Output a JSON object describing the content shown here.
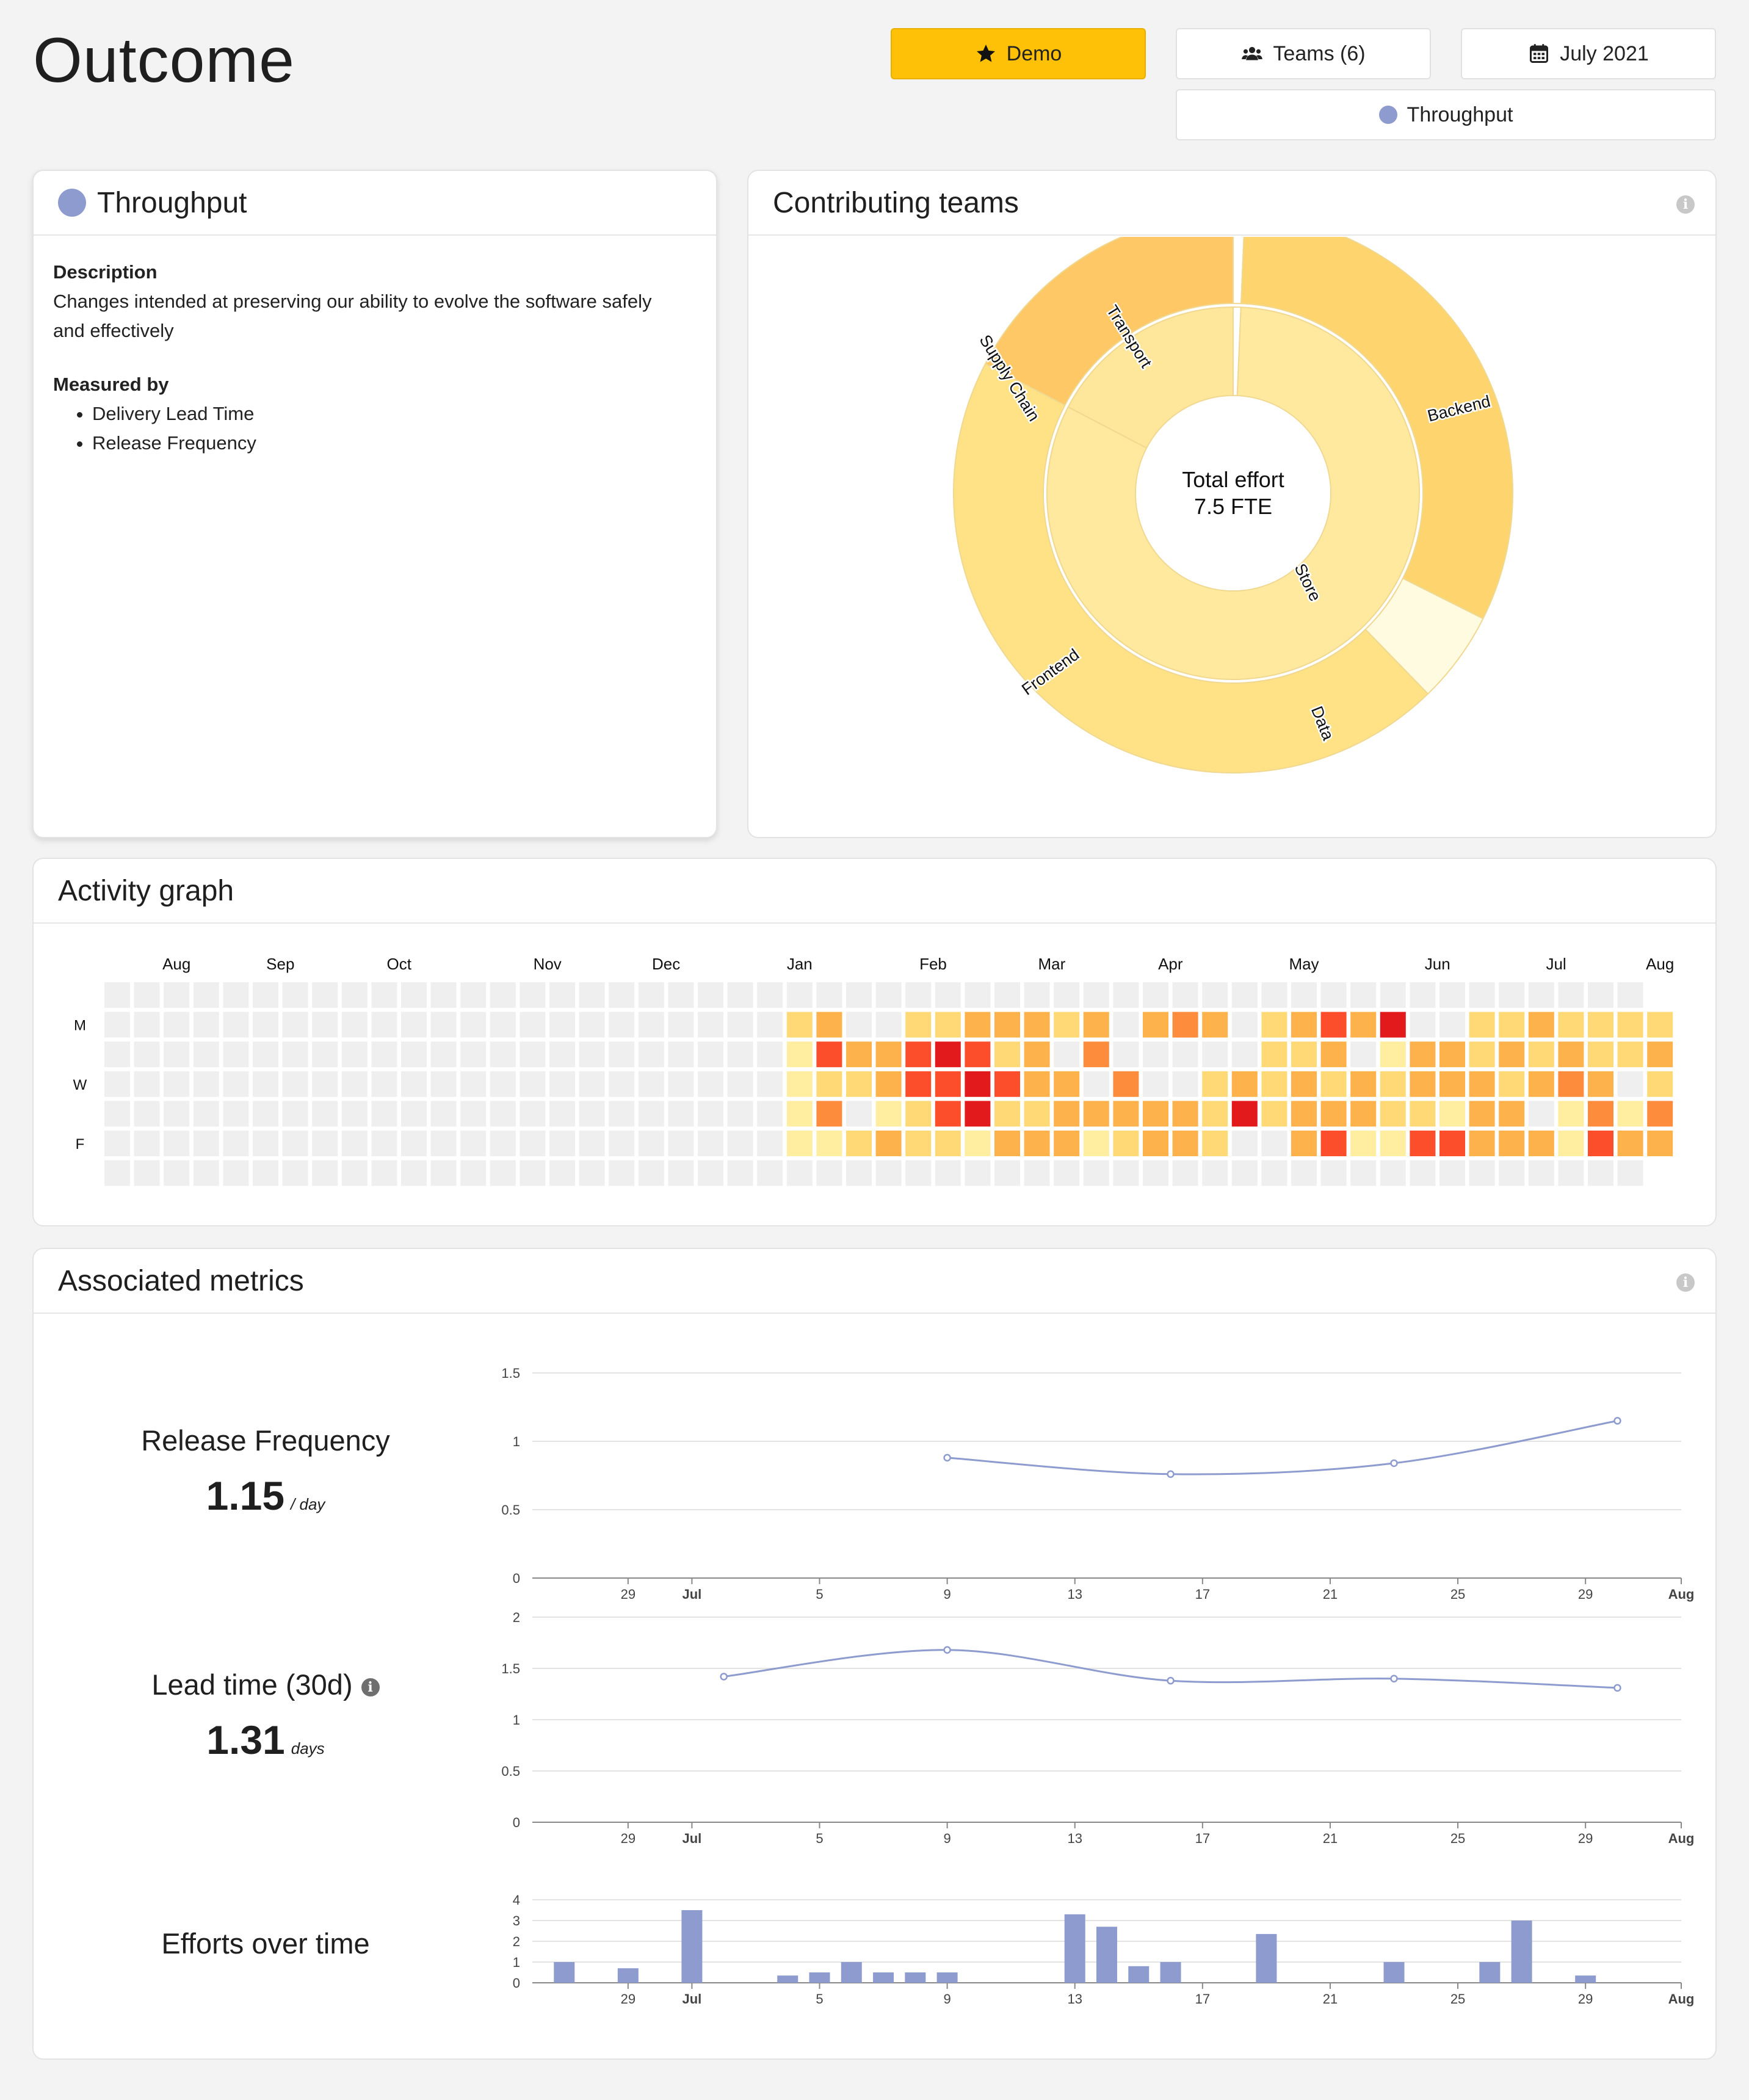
{
  "page": {
    "title": "Outcome"
  },
  "toolbar": {
    "demo_label": "Demo",
    "teams_label": "Teams (6)",
    "date_label": "July 2021",
    "outcome_label": "Throughput"
  },
  "outcome_card": {
    "title": "Throughput",
    "description_heading": "Description",
    "description_text": "Changes intended at preserving our ability to evolve the software safely and effectively",
    "measured_heading": "Measured by",
    "measures": [
      "Delivery Lead Time",
      "Release Frequency"
    ]
  },
  "teams_card": {
    "title": "Contributing teams",
    "center_line1": "Total effort",
    "center_line2": "7.5 FTE"
  },
  "activity_card": {
    "title": "Activity graph",
    "day_labels": [
      "M",
      "W",
      "F"
    ]
  },
  "metrics_card": {
    "title": "Associated metrics",
    "release": {
      "name": "Release Frequency",
      "value": "1.15",
      "unit": "/ day"
    },
    "lead": {
      "name": "Lead time (30d)",
      "value": "1.31",
      "unit": "days"
    },
    "efforts": {
      "name": "Efforts over time"
    }
  },
  "colors": {
    "accent": "#ffc107",
    "series": "#8e9bcf",
    "heat": [
      "#ffeda0",
      "#fed976",
      "#feb24c",
      "#fd8d3c",
      "#fc4e2a",
      "#e31a1c",
      "#800026"
    ]
  },
  "chart_data": [
    {
      "type": "sunburst",
      "title": "Contributing teams",
      "inner": [
        {
          "name": "Supply Chain",
          "value": 1.3
        },
        {
          "name": "",
          "value": 0.05
        },
        {
          "name": "Store",
          "value": 6.15
        }
      ],
      "outer": [
        {
          "name": "Transport",
          "parent": "Supply Chain",
          "value": 1.3
        },
        {
          "name": "",
          "parent": "",
          "value": 0.05
        },
        {
          "name": "Backend",
          "parent": "Store",
          "value": 2.38
        },
        {
          "name": "Data",
          "parent": "Store",
          "value": 0.4
        },
        {
          "name": "Frontend",
          "parent": "Store",
          "value": 3.37
        }
      ]
    },
    {
      "type": "heatmap",
      "title": "Activity graph",
      "month_labels": [
        "Aug",
        "Sep",
        "Oct",
        "Nov",
        "Dec",
        "Jan",
        "Feb",
        "Mar",
        "Apr",
        "May",
        "Jun",
        "Jul",
        "Aug"
      ],
      "month_label_week": [
        2,
        5.5,
        9.5,
        14.5,
        18.5,
        23,
        27.5,
        31.5,
        35.5,
        40,
        44.5,
        48.5,
        52
      ],
      "weeks": 53,
      "values": [
        "0000000000000000000000000000000000000000000000000000",
        "000000000000000000000002300223332303430235360022322223",
        "00000000000000000000000153356523040000022301332323223",
        "000000000000000000000001223556533040023232323332343023",
        "00000000000000000000000140125622333332623332213301414",
        "00000000000000000000000112322133312332003511553331533",
        "0000000000000000000000000000000000000000000000000000"
      ],
      "value_scale": "0 = none, 1-7 = increasing intensity"
    },
    {
      "type": "line",
      "title": "Release Frequency",
      "x": [
        "2021-07-09",
        "2021-07-16",
        "2021-07-23",
        "2021-07-30"
      ],
      "values": [
        0.88,
        0.76,
        0.84,
        1.15
      ],
      "ylim": [
        0,
        1.5
      ],
      "yticks": [
        0,
        0.5,
        1,
        1.5
      ],
      "xticks": [
        "29",
        "Jul",
        "5",
        "9",
        "13",
        "17",
        "21",
        "25",
        "29",
        "Aug"
      ]
    },
    {
      "type": "line",
      "title": "Lead time (30d)",
      "x": [
        "2021-07-02",
        "2021-07-09",
        "2021-07-16",
        "2021-07-23",
        "2021-07-30"
      ],
      "values": [
        1.42,
        1.68,
        1.38,
        1.4,
        1.31
      ],
      "ylim": [
        0,
        2
      ],
      "yticks": [
        0,
        0.5,
        1,
        1.5,
        2
      ],
      "xticks": [
        "29",
        "Jul",
        "5",
        "9",
        "13",
        "17",
        "21",
        "25",
        "29",
        "Aug"
      ]
    },
    {
      "type": "bar",
      "title": "Efforts over time",
      "x": [
        "2021-06-27",
        "2021-06-29",
        "2021-07-01",
        "2021-07-04",
        "2021-07-05",
        "2021-07-06",
        "2021-07-07",
        "2021-07-08",
        "2021-07-09",
        "2021-07-13",
        "2021-07-14",
        "2021-07-15",
        "2021-07-16",
        "2021-07-19",
        "2021-07-23",
        "2021-07-26",
        "2021-07-27",
        "2021-07-29",
        "2021-07-30"
      ],
      "values": [
        1,
        0.7,
        3.5,
        0.35,
        0.5,
        1,
        0.5,
        0.5,
        0.5,
        3.3,
        2.7,
        0.8,
        1,
        2.35,
        1,
        1,
        3,
        0.35,
        0
      ],
      "ylim": [
        0,
        4
      ],
      "yticks": [
        0,
        1,
        2,
        3,
        4
      ],
      "xticks": [
        "29",
        "Jul",
        "5",
        "9",
        "13",
        "17",
        "21",
        "25",
        "29",
        "Aug"
      ]
    }
  ]
}
